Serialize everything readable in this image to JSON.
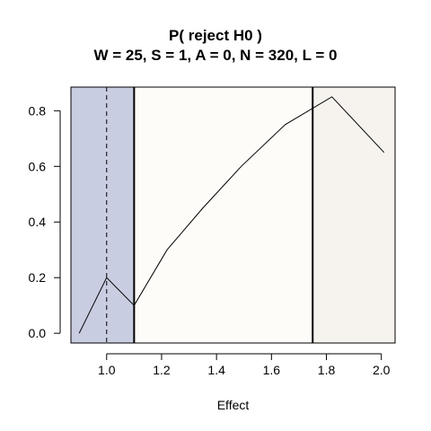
{
  "chart_data": {
    "type": "line",
    "title": "P( reject H0 )",
    "subtitle": "W = 25, S = 1, A = 0, N = 320, L = 0",
    "xlabel": "Effect",
    "ylabel": "",
    "xlim": [
      0.87,
      2.05
    ],
    "ylim": [
      -0.035,
      0.885
    ],
    "x_ticks": [
      1.0,
      1.2,
      1.4,
      1.6,
      1.8,
      2.0
    ],
    "x_tick_labels": [
      "1.0",
      "1.2",
      "1.4",
      "1.6",
      "1.8",
      "2.0"
    ],
    "y_ticks": [
      0.0,
      0.2,
      0.4,
      0.6,
      0.8
    ],
    "y_tick_labels": [
      "0.0",
      "0.2",
      "0.4",
      "0.6",
      "0.8"
    ],
    "grid": false,
    "legend": "none",
    "series": [
      {
        "x": [
          0.9,
          1.0,
          1.1,
          1.22,
          1.35,
          1.49,
          1.65,
          1.82,
          2.01
        ],
        "y": [
          0.0,
          0.2,
          0.1,
          0.3,
          0.45,
          0.6,
          0.75,
          0.85,
          0.65
        ]
      }
    ],
    "regions": [
      {
        "from": 0.87,
        "to": 1.1,
        "color": "#c8cde2"
      },
      {
        "from": 1.1,
        "to": 1.75,
        "color": "#fdfcf8"
      },
      {
        "from": 1.75,
        "to": 2.05,
        "color": "#f6f3ef"
      }
    ],
    "vertical_lines": [
      {
        "x": 1.0,
        "style": "dashed"
      },
      {
        "x": 1.1,
        "style": "solid"
      },
      {
        "x": 1.75,
        "style": "solid"
      }
    ]
  }
}
